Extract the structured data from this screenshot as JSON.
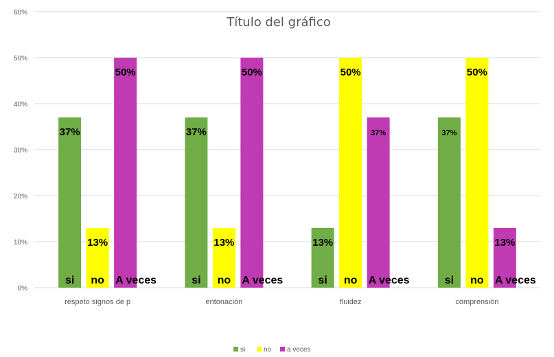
{
  "chart_data": {
    "type": "bar",
    "title": "Título del gráfico",
    "categories": [
      "respeto signos de p",
      "entonación",
      "fluidez",
      "comprensión"
    ],
    "ylim": [
      0,
      60
    ],
    "yticks": [
      "0%",
      "10%",
      "20%",
      "30%",
      "40%",
      "50%",
      "60%"
    ],
    "grid": true,
    "legend_position": "bottom",
    "series": [
      {
        "name": "si",
        "color": "#70ad47",
        "values": [
          37,
          37,
          13,
          37
        ],
        "value_labels": [
          "37%",
          "37%",
          "13%",
          "37%"
        ],
        "bar_labels": [
          "si",
          "si",
          "si",
          "si"
        ]
      },
      {
        "name": "no",
        "color": "#ffff00",
        "values": [
          13,
          13,
          50,
          50
        ],
        "value_labels": [
          "13%",
          "13%",
          "50%",
          "50%"
        ],
        "bar_labels": [
          "no",
          "no",
          "no",
          "no"
        ]
      },
      {
        "name": "a veces",
        "color": "#c03ab4",
        "values": [
          50,
          50,
          37,
          13
        ],
        "value_labels": [
          "50%",
          "50%",
          "37%",
          "13%"
        ],
        "bar_labels": [
          "A veces",
          "A veces",
          "A veces",
          "A veces"
        ]
      }
    ]
  }
}
